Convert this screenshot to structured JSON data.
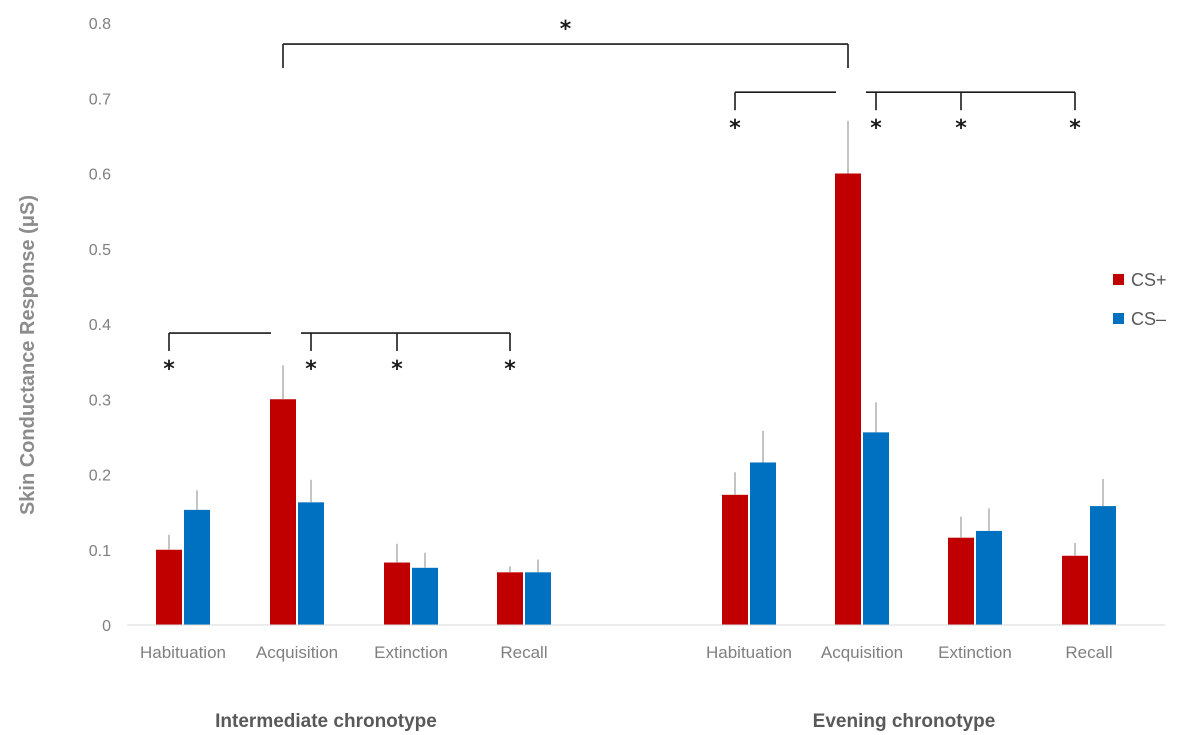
{
  "chart_data": {
    "type": "bar",
    "ylabel": "Skin Conductance Response (μS)",
    "ylim": [
      0,
      0.8
    ],
    "yticks": [
      "0",
      "0.1",
      "0.2",
      "0.3",
      "0.4",
      "0.5",
      "0.6",
      "0.7",
      "0.8"
    ],
    "grid": false,
    "legend_position": "right",
    "groups": [
      {
        "label": "Intermediate chronotype",
        "categories": [
          "Habituation",
          "Acquisition",
          "Extinction",
          "Recall"
        ],
        "series": [
          {
            "name": "CS+",
            "values": [
              0.1,
              0.3,
              0.083,
              0.07
            ],
            "errors": [
              0.02,
              0.045,
              0.025,
              0.008
            ]
          },
          {
            "name": "CS–",
            "values": [
              0.153,
              0.163,
              0.076,
              0.07
            ],
            "errors": [
              0.026,
              0.03,
              0.02,
              0.017
            ]
          }
        ]
      },
      {
        "label": "Evening chronotype",
        "categories": [
          "Habituation",
          "Acquisition",
          "Extinction",
          "Recall"
        ],
        "series": [
          {
            "name": "CS+",
            "values": [
              0.173,
              0.6,
              0.116,
              0.092
            ],
            "errors": [
              0.03,
              0.07,
              0.028,
              0.017
            ]
          },
          {
            "name": "CS–",
            "values": [
              0.216,
              0.256,
              0.125,
              0.158
            ],
            "errors": [
              0.042,
              0.04,
              0.03,
              0.036
            ]
          }
        ]
      }
    ],
    "significance": {
      "marker": "*"
    }
  },
  "colors": {
    "cs_plus": "#c00000",
    "cs_minus": "#0070c0",
    "errorbar": "#b0b0b0",
    "bracket": "#1a1a1a"
  }
}
